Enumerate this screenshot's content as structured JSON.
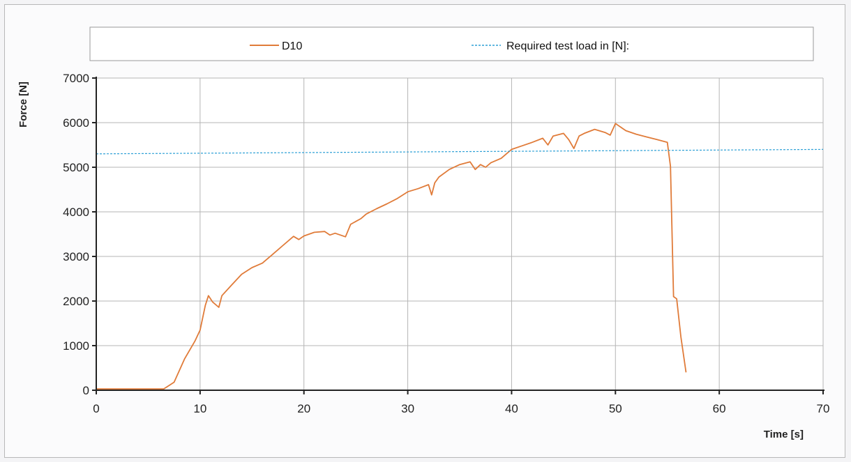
{
  "chart_data": {
    "type": "line",
    "title": "",
    "xlabel": "Time [s]",
    "ylabel": "Force [N]",
    "xlim": [
      0,
      70
    ],
    "ylim": [
      0,
      7000
    ],
    "xticks": [
      0,
      10,
      20,
      30,
      40,
      50,
      60,
      70
    ],
    "yticks": [
      0,
      1000,
      2000,
      3000,
      4000,
      5000,
      6000,
      7000
    ],
    "grid": true,
    "legend_position": "top",
    "series": [
      {
        "name": "D10",
        "color": "#e07b39",
        "points": [
          [
            0,
            30
          ],
          [
            6.5,
            30
          ],
          [
            7.5,
            180
          ],
          [
            8.5,
            700
          ],
          [
            9.5,
            1100
          ],
          [
            10,
            1350
          ],
          [
            10.5,
            1900
          ],
          [
            10.8,
            2120
          ],
          [
            11.2,
            1980
          ],
          [
            11.8,
            1860
          ],
          [
            12.1,
            2120
          ],
          [
            13,
            2350
          ],
          [
            14,
            2600
          ],
          [
            15,
            2750
          ],
          [
            16,
            2850
          ],
          [
            17,
            3050
          ],
          [
            18,
            3250
          ],
          [
            19,
            3450
          ],
          [
            19.5,
            3380
          ],
          [
            20,
            3460
          ],
          [
            21,
            3540
          ],
          [
            22,
            3560
          ],
          [
            22.5,
            3480
          ],
          [
            23,
            3520
          ],
          [
            24,
            3440
          ],
          [
            24.5,
            3720
          ],
          [
            25.5,
            3850
          ],
          [
            26,
            3950
          ],
          [
            27,
            4070
          ],
          [
            28,
            4180
          ],
          [
            29,
            4300
          ],
          [
            30,
            4450
          ],
          [
            31,
            4520
          ],
          [
            32,
            4610
          ],
          [
            32.3,
            4380
          ],
          [
            32.6,
            4650
          ],
          [
            33,
            4780
          ],
          [
            34,
            4950
          ],
          [
            35,
            5060
          ],
          [
            36,
            5120
          ],
          [
            36.5,
            4950
          ],
          [
            37,
            5060
          ],
          [
            37.5,
            5000
          ],
          [
            38,
            5100
          ],
          [
            39,
            5200
          ],
          [
            40,
            5400
          ],
          [
            41,
            5480
          ],
          [
            42,
            5560
          ],
          [
            43,
            5650
          ],
          [
            43.5,
            5500
          ],
          [
            44,
            5700
          ],
          [
            45,
            5760
          ],
          [
            45.5,
            5620
          ],
          [
            46,
            5420
          ],
          [
            46.5,
            5700
          ],
          [
            47,
            5760
          ],
          [
            48,
            5850
          ],
          [
            49,
            5780
          ],
          [
            49.5,
            5720
          ],
          [
            50,
            5980
          ],
          [
            51,
            5820
          ],
          [
            52,
            5740
          ],
          [
            53,
            5680
          ],
          [
            54,
            5620
          ],
          [
            55,
            5560
          ],
          [
            55.3,
            5020
          ],
          [
            55.6,
            2100
          ],
          [
            55.9,
            2050
          ],
          [
            56.3,
            1200
          ],
          [
            56.8,
            400
          ]
        ]
      },
      {
        "name": "Required test load in [N]:",
        "color": "#2ea0d6",
        "dashed": true,
        "points": [
          [
            0,
            5300
          ],
          [
            70,
            5400
          ]
        ]
      }
    ]
  }
}
